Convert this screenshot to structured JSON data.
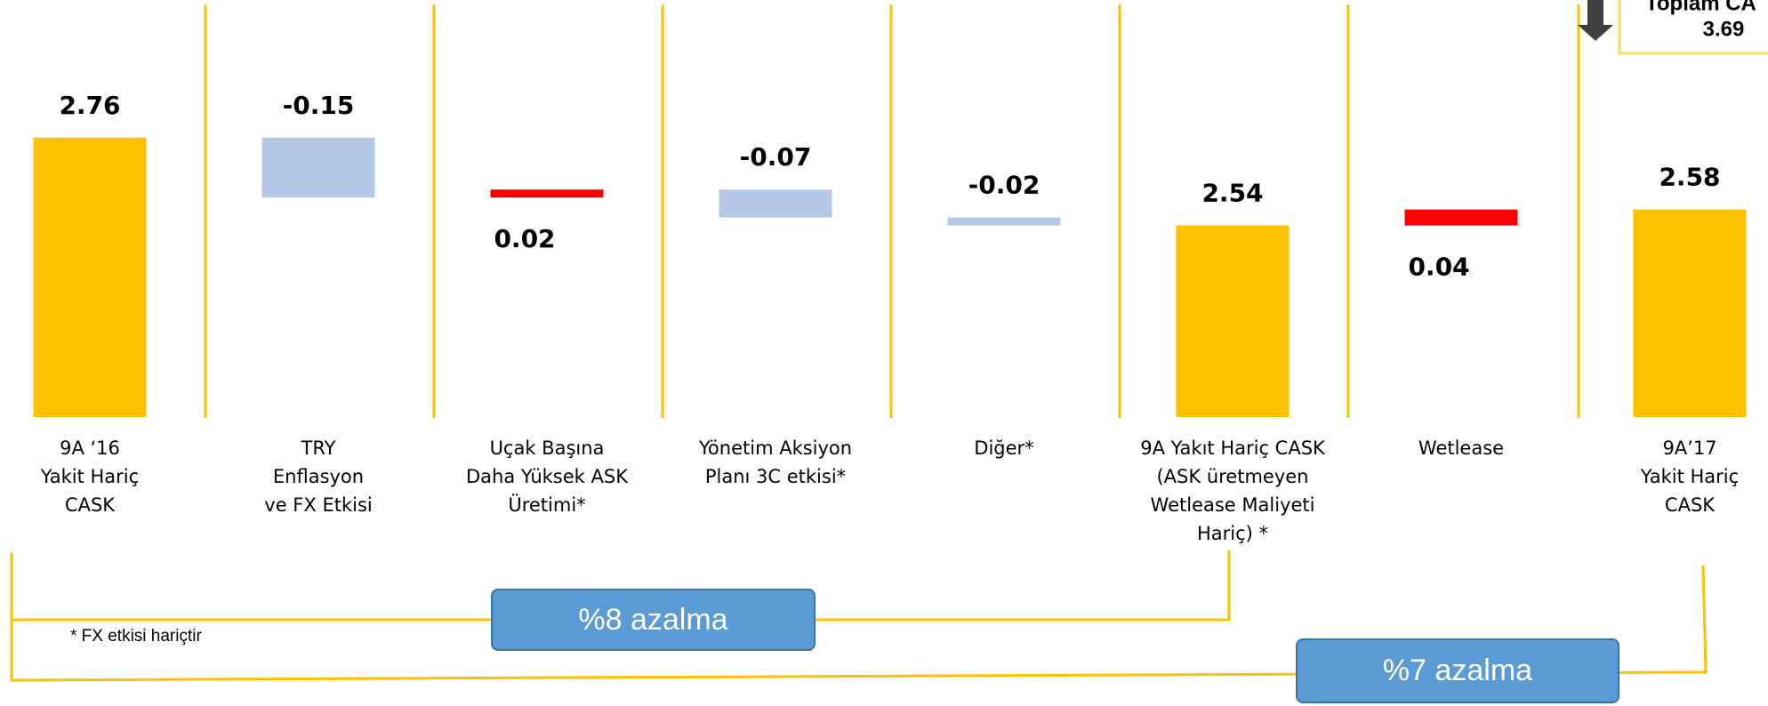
{
  "chart_data": {
    "type": "waterfall",
    "categories": [
      "9A ‘16\nYakit Hariç\nCASK",
      "TRY\nEnflasyon\nve FX Etkisi",
      "Uçak Başına\nDaha Yüksek ASK\nÜretimi*",
      "Yönetim Aksiyon\nPlanı  3C etkisi*",
      "Diğer*",
      "9A Yakıt Hariç CASK\n(ASK üretmeyen\nWetlease Maliyeti\nHariç) *",
      "Wetlease",
      "9A’17\nYakit Hariç\nCASK"
    ],
    "values": [
      2.76,
      -0.15,
      0.02,
      -0.07,
      -0.02,
      2.54,
      0.04,
      2.58
    ],
    "measure": [
      "absolute",
      "relative",
      "relative",
      "relative",
      "relative",
      "total",
      "relative",
      "total"
    ],
    "colors": {
      "total": "#FFC000",
      "decrease": "#B4C7E7",
      "increase": "#FF0000"
    },
    "ylim": [
      2.06,
      2.9
    ],
    "annotations": [
      "%8 azalma",
      "%7 azalma",
      "* FX etkisi hariçtir"
    ],
    "corner_box": {
      "title": "Toplam CA",
      "value": "3.69"
    }
  }
}
